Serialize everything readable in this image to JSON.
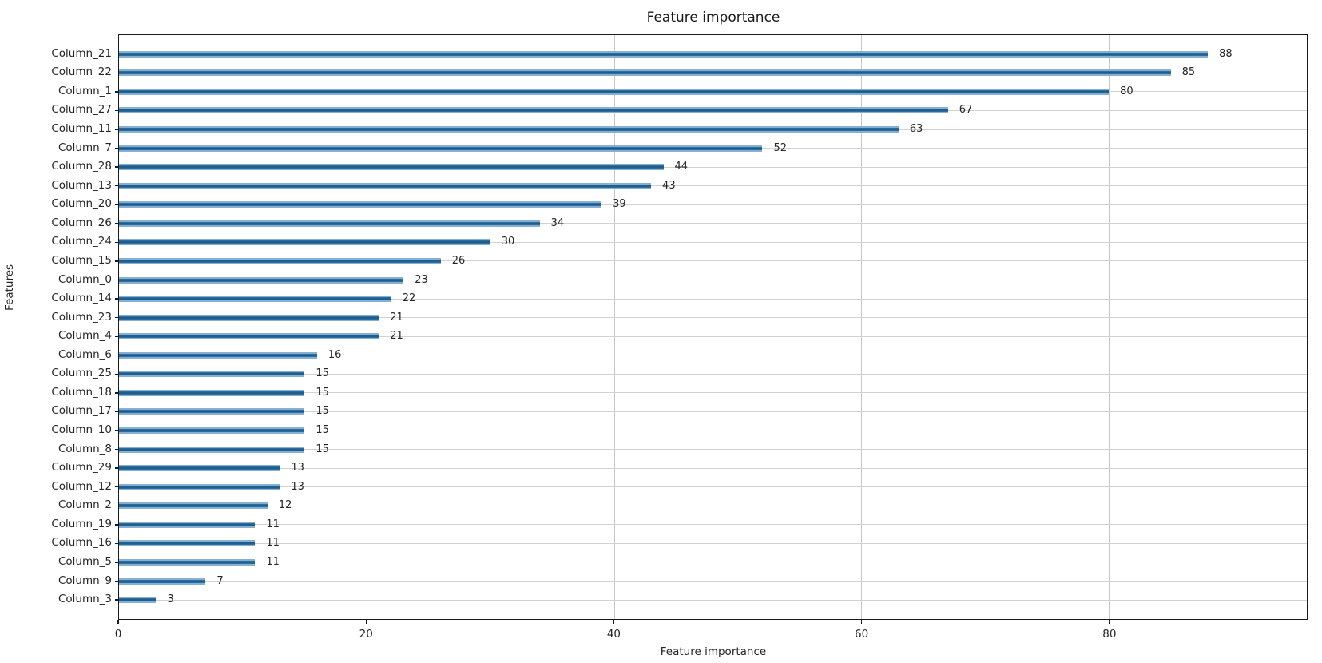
{
  "chart_data": {
    "type": "bar",
    "orientation": "horizontal",
    "title": "Feature importance",
    "xlabel": "Feature importance",
    "ylabel": "Features",
    "xlim": [
      0,
      96
    ],
    "xticks": [
      0,
      20,
      40,
      60,
      80
    ],
    "grid": true,
    "legend": "none",
    "bar_color": "#2a6d9e",
    "bar_edge_color": "#86afd1",
    "categories": [
      "Column_21",
      "Column_22",
      "Column_1",
      "Column_27",
      "Column_11",
      "Column_7",
      "Column_28",
      "Column_13",
      "Column_20",
      "Column_26",
      "Column_24",
      "Column_15",
      "Column_0",
      "Column_14",
      "Column_23",
      "Column_4",
      "Column_6",
      "Column_25",
      "Column_18",
      "Column_17",
      "Column_10",
      "Column_8",
      "Column_29",
      "Column_12",
      "Column_2",
      "Column_19",
      "Column_16",
      "Column_5",
      "Column_9",
      "Column_3"
    ],
    "values": [
      88,
      85,
      80,
      67,
      63,
      52,
      44,
      43,
      39,
      34,
      30,
      26,
      23,
      22,
      21,
      21,
      16,
      15,
      15,
      15,
      15,
      15,
      13,
      13,
      12,
      11,
      11,
      11,
      7,
      3
    ]
  }
}
